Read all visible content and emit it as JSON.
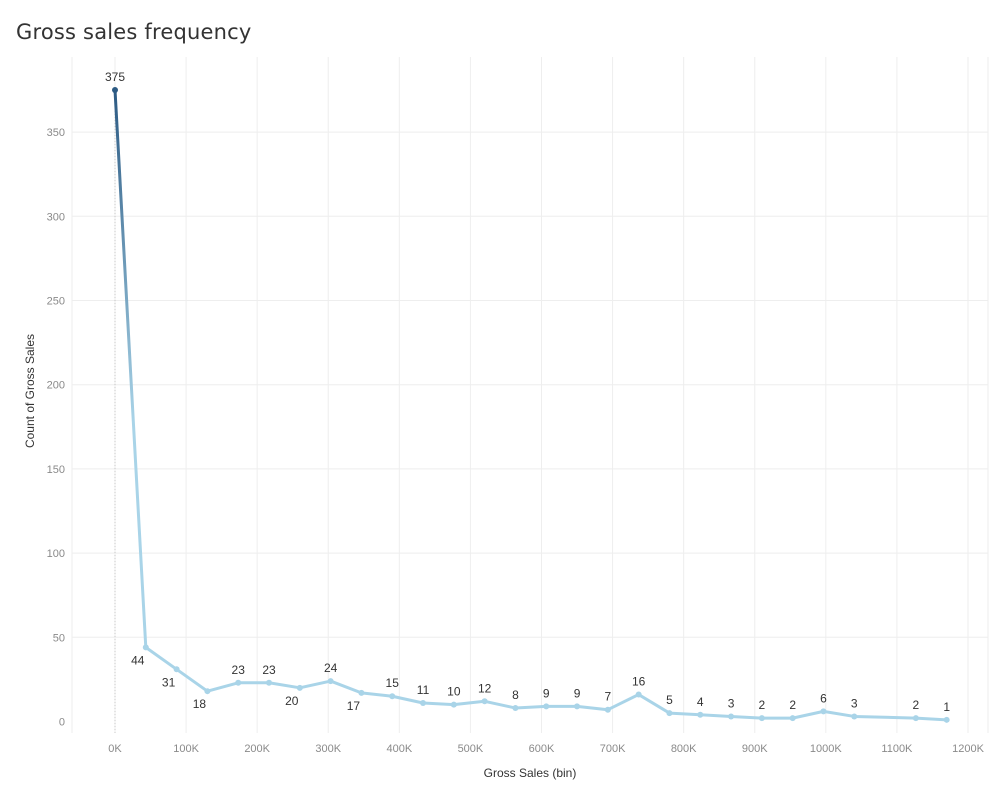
{
  "chart_data": {
    "type": "line",
    "title": "Gross sales frequency",
    "xlabel": "Gross Sales (bin)",
    "ylabel": "Count of Gross Sales",
    "xlim": [
      -60000,
      1220000
    ],
    "ylim": [
      -5,
      395
    ],
    "xticks": [
      0,
      100000,
      200000,
      300000,
      400000,
      500000,
      600000,
      700000,
      800000,
      900000,
      1000000,
      1100000,
      1200000
    ],
    "xtick_labels": [
      "0K",
      "100K",
      "200K",
      "300K",
      "400K",
      "500K",
      "600K",
      "700K",
      "800K",
      "900K",
      "1000K",
      "1100K",
      "1200K"
    ],
    "yticks": [
      0,
      50,
      100,
      150,
      200,
      250,
      300,
      350
    ],
    "ytick_labels": [
      "0",
      "50",
      "100",
      "150",
      "200",
      "250",
      "300",
      "350"
    ],
    "grid": true,
    "series": [
      {
        "x": [
          0,
          43333,
          86667,
          130000,
          173333,
          216667,
          260000,
          303333,
          346667,
          390000,
          433333,
          476667,
          520000,
          563333,
          606667,
          650000,
          693333,
          736667,
          780000,
          823333,
          866667,
          910000,
          953333,
          996667,
          1040000,
          1126667,
          1170000
        ],
        "values": [
          375,
          44,
          31,
          18,
          23,
          23,
          20,
          24,
          17,
          15,
          11,
          10,
          12,
          8,
          9,
          9,
          7,
          16,
          5,
          4,
          3,
          2,
          2,
          6,
          3,
          2,
          1
        ],
        "labels": [
          "375",
          "44",
          "31",
          "18",
          "23",
          "23",
          "20",
          "24",
          "17",
          "15",
          "11",
          "10",
          "12",
          "8",
          "9",
          "9",
          "7",
          "16",
          "5",
          "4",
          "3",
          "2",
          "2",
          "6",
          "3",
          "2",
          "1"
        ],
        "label_side": [
          "above",
          "below",
          "below",
          "below",
          "above",
          "above",
          "below",
          "above",
          "below",
          "above",
          "above",
          "above",
          "above",
          "above",
          "above",
          "above",
          "above",
          "above",
          "above",
          "above",
          "above",
          "above",
          "above",
          "above",
          "above",
          "above",
          "above"
        ]
      }
    ],
    "colors": {
      "high": "#2c5a83",
      "low": "#a9d4e8",
      "grid": "#eeeeee",
      "zero_line": "#c8c8c8"
    }
  }
}
